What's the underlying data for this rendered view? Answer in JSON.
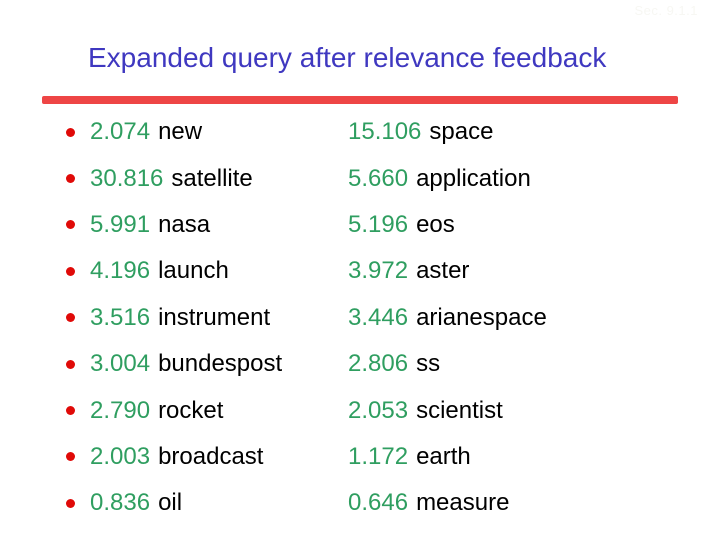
{
  "slide": {
    "section_label": "Sec. 9.1.1",
    "title": "Expanded query after relevance feedback",
    "list": {
      "left": [
        {
          "weight": "2.074",
          "term": "new"
        },
        {
          "weight": "30.816",
          "term": "satellite"
        },
        {
          "weight": "5.991",
          "term": "nasa"
        },
        {
          "weight": "4.196",
          "term": "launch"
        },
        {
          "weight": "3.516",
          "term": "instrument"
        },
        {
          "weight": "3.004",
          "term": "bundespost"
        },
        {
          "weight": "2.790",
          "term": "rocket"
        },
        {
          "weight": "2.003",
          "term": "broadcast"
        },
        {
          "weight": "0.836",
          "term": "oil"
        }
      ],
      "right": [
        {
          "weight": "15.106",
          "term": "space"
        },
        {
          "weight": "5.660",
          "term": "application"
        },
        {
          "weight": "5.196",
          "term": "eos"
        },
        {
          "weight": "3.972",
          "term": "aster"
        },
        {
          "weight": "3.446",
          "term": "arianespace"
        },
        {
          "weight": "2.806",
          "term": "ss"
        },
        {
          "weight": "2.053",
          "term": "scientist"
        },
        {
          "weight": "1.172",
          "term": "earth"
        },
        {
          "weight": "0.646",
          "term": "measure"
        }
      ]
    },
    "colors": {
      "title": "#3f38c0",
      "divider": "#ee4545",
      "bullet": "#e00a08",
      "weight": "#2f9e60",
      "term": "#000000",
      "section_label": "#f7f7f3"
    }
  }
}
